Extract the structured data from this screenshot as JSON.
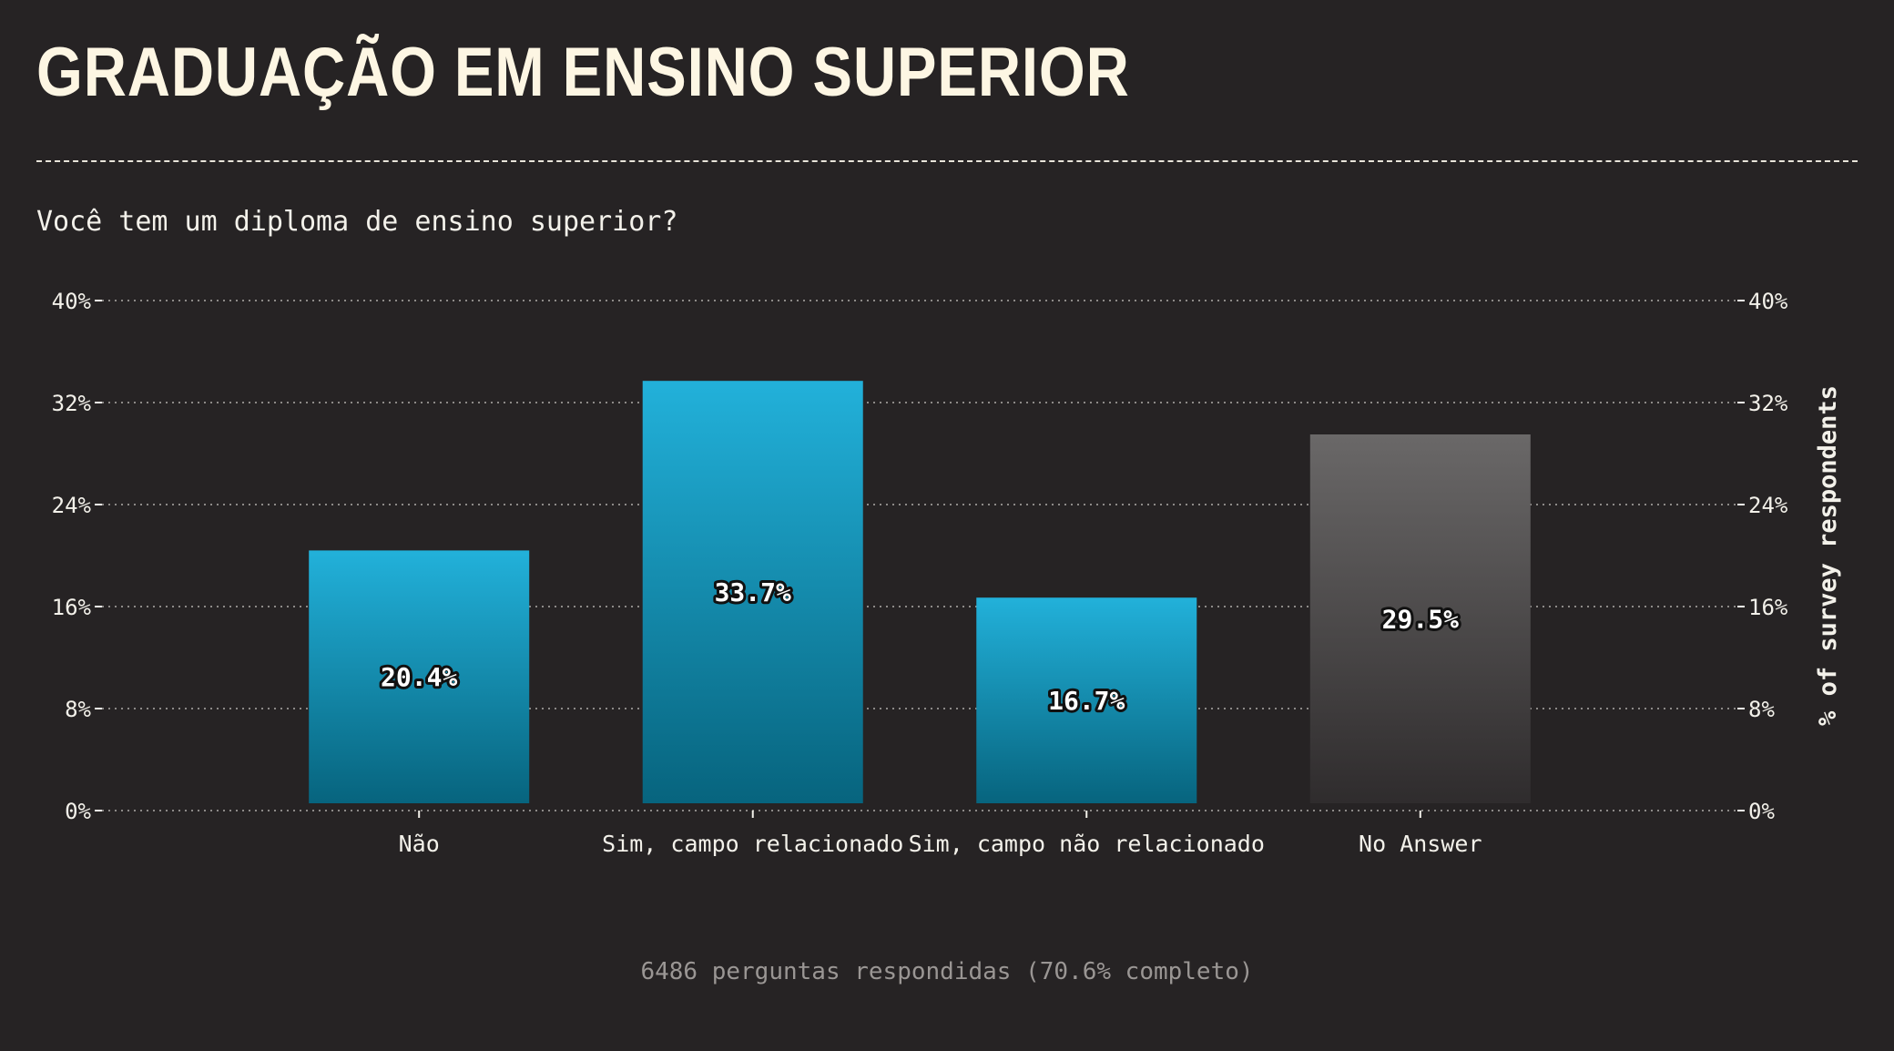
{
  "chart_data": {
    "type": "bar",
    "title": "GRADUAÇÃO EM ENSINO SUPERIOR",
    "subtitle": "Você tem um diploma de ensino superior?",
    "footer": "6486 perguntas respondidas (70.6% completo)",
    "ylabel": "% of survey respondents",
    "categories": [
      "Não",
      "Sim, campo relacionado",
      "Sim, campo não relacionado",
      "No Answer"
    ],
    "values": [
      20.4,
      33.7,
      16.7,
      29.5
    ],
    "value_labels": [
      "20.4%",
      "33.7%",
      "16.7%",
      "29.5%"
    ],
    "ylim": [
      0,
      40
    ],
    "y_ticks": [
      0,
      8,
      16,
      24,
      32,
      40
    ],
    "y_tick_labels": [
      "0%",
      "8%",
      "16%",
      "24%",
      "32%",
      "40%"
    ],
    "grid": true,
    "dual_y_axis": true,
    "colors": {
      "bar_top": "#22b1da",
      "bar_bottom": "#07647e",
      "no_answer_top": "#6a6868",
      "no_answer_bottom": "#2f2c2d",
      "background": "#262324"
    }
  }
}
